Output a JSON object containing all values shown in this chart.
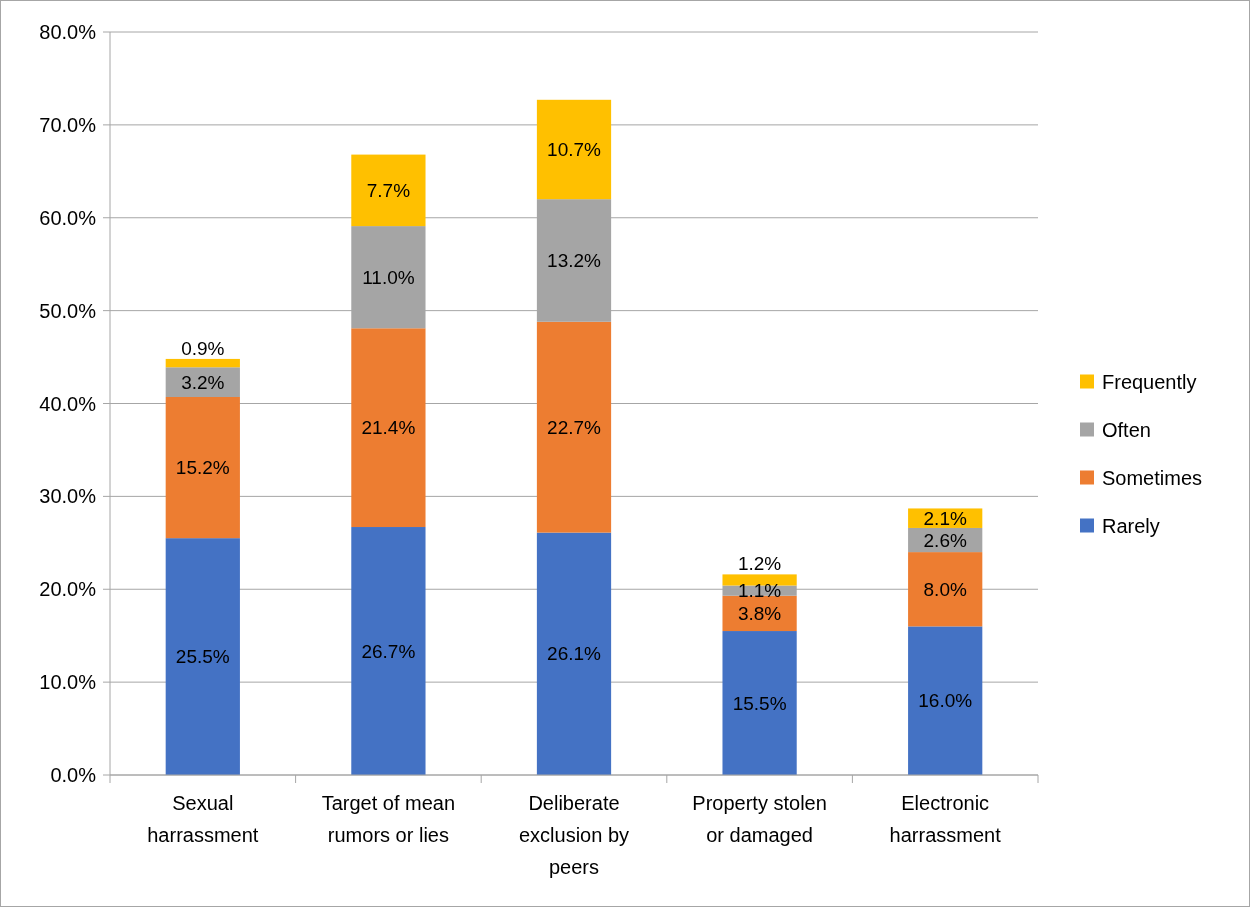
{
  "chart_data": {
    "type": "bar",
    "stacked": true,
    "categories": [
      "Sexual harrassment",
      "Target of mean rumors or lies",
      "Deliberate exclusion by peers",
      "Property stolen or damaged",
      "Electronic harrassment"
    ],
    "series": [
      {
        "name": "Rarely",
        "color": "#4472c4",
        "values": [
          25.5,
          26.7,
          26.1,
          15.5,
          16.0
        ],
        "value_labels": [
          "25.5%",
          "26.7%",
          "26.1%",
          "15.5%",
          "16.0%"
        ]
      },
      {
        "name": "Sometimes",
        "color": "#ed7d31",
        "values": [
          15.2,
          21.4,
          22.7,
          3.8,
          8.0
        ],
        "value_labels": [
          "15.2%",
          "21.4%",
          "22.7%",
          "3.8%",
          "8.0%"
        ]
      },
      {
        "name": "Often",
        "color": "#a5a5a5",
        "values": [
          3.2,
          11.0,
          13.2,
          1.1,
          2.6
        ],
        "value_labels": [
          "3.2%",
          "11.0%",
          "13.2%",
          "1.1%",
          "2.6%"
        ]
      },
      {
        "name": "Frequently",
        "color": "#ffc000",
        "values": [
          0.9,
          7.7,
          10.7,
          1.2,
          2.1
        ],
        "value_labels": [
          "0.9%",
          "7.7%",
          "10.7%",
          "1.2%",
          "2.1%"
        ]
      }
    ],
    "ylim": [
      0,
      80
    ],
    "yticks": [
      {
        "value": 0,
        "label": "0.0%"
      },
      {
        "value": 10,
        "label": "10.0%"
      },
      {
        "value": 20,
        "label": "20.0%"
      },
      {
        "value": 30,
        "label": "30.0%"
      },
      {
        "value": 40,
        "label": "40.0%"
      },
      {
        "value": 50,
        "label": "50.0%"
      },
      {
        "value": 60,
        "label": "60.0%"
      },
      {
        "value": 70,
        "label": "70.0%"
      },
      {
        "value": 80,
        "label": "80.0%"
      }
    ],
    "grid": "y",
    "legend": "right"
  }
}
